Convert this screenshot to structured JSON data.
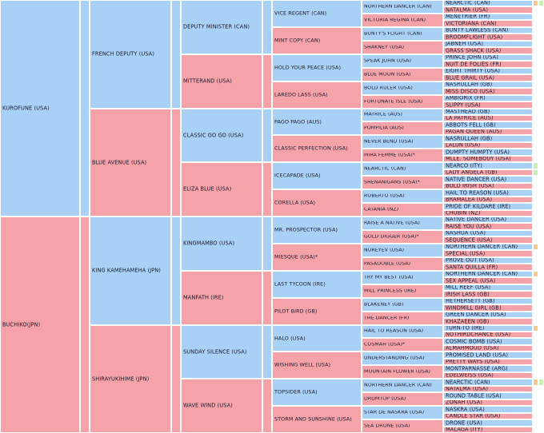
{
  "pedigree": {
    "g1": [
      "KUROFUNE (USA)",
      "BUCHIKO(JPN)"
    ],
    "g2": [
      "FRENCH DEPUTY (USA)",
      "BLUE AVENUE (USA)",
      "KING KAMEHAMEHA (JPN)",
      "SHIRAYUKIHIME (JPN)"
    ],
    "g3": [
      "DEPUTY MINISTER (CAN)",
      "MITTERAND (USA)",
      "CLASSIC GO GO (USA)",
      "ELIZA BLUE (USA)",
      "KINGMAMBO (USA)",
      "MANFATH (IRE)",
      "SUNDAY SILENCE (USA)",
      "WAVE WIND (USA)"
    ],
    "g4": [
      "VICE REGENT (CAN)",
      "MINT COPY (CAN)",
      "HOLD YOUR PEACE (USA)",
      "LAREDO LASS (USA)",
      "PAGO PAGO (AUS)",
      "CLASSIC PERFECTION (USA)",
      "ICECAPADE (USA)",
      "CORELLA (USA)",
      "MR. PROSPECTOR (USA)",
      "MIESQUE (USA)*",
      "LAST TYCOON (IRE)",
      "PILOT BIRD (GB)",
      "HALO (USA)",
      "WISHING WELL (USA)",
      "TOPSIDER (USA)",
      "STORM AND SUNSHINE (USA)"
    ],
    "g5": [
      "NORTHERN DANCER (CAN)",
      "VICTORIA REGINA (CAN)",
      "BUNTY'S FLIGHT (CAN)",
      "SHAKNEY (USA)",
      "SPEAK JOHN (USA)",
      "BLUE MOON (USA)",
      "BOLD RULER (USA)",
      "FORTUNATE ISLE (USA)",
      "MATRICE (AUS)",
      "POMPILIA (AUS)",
      "NEVER BEND (USA)",
      "MIRA FEMME (USA)*",
      "NEARCTIC (CAN)",
      "SHENANIGANS (USA)*",
      "ROBERTO (USA)",
      "CATANIA (NZ)",
      "RAISE A NATIVE (USA)",
      "GOLD DIGGER (USA)*",
      "NUREYEV (USA)",
      "PASADOBLE (USA)",
      "TRY MY BEST (USA)",
      "MILL PRINCESS (IRE)",
      "BLAKENEY (GB)",
      "THE DANCER (FR)",
      "HAIL TO REASON (USA)",
      "COSMAH (USA)*",
      "UNDERSTANDING (USA)",
      "MOUNTAIN FLOWER (USA)",
      "NORTHERN DANCER (CAN)",
      "DRUMTOP (USA)",
      "STAR DE NASKRA (USA)",
      "SEA DRONE (USA)"
    ],
    "g6": [
      "NEARCTIC (CAN)",
      "NATALMA (USA)",
      "MENETRIER (FR)",
      "VICTORIANA (CAN)",
      "BUNTY LAWLESS (CAN)",
      "BROOMFLIGHT (USA)",
      "JABNEH (USA)",
      "GRASS SHACK (USA)",
      "PRINCE JOHN (USA)",
      "NUIT DE FOLIES (FR)",
      "EIGHT THIRTY (USA)",
      "BLUE GRAIL (USA)",
      "NASRULLAH (GB)",
      "MISS DISCO (USA)",
      "AMBIORIX (FR)",
      "SLIPPY (USA)",
      "MASTHEAD (GB)",
      "LA PATRICE (AUS)",
      "ABBOTS FELL (GB)",
      "PAGAN QUEEN (AUS)",
      "NASRULLAH (GB)",
      "LALUN (USA)",
      "DUMPTY HUMPTY (USA)",
      "MLLE. SOMEBODY (USA)",
      "NEARCO (ITY)",
      "LADY ANGELA (GB)",
      "NATIVE DANCER (USA)",
      "BOLD IRISH (USA)",
      "HAIL TO REASON (USA)",
      "BRAMALEA (USA)",
      "PRIDE OF KILDARE (IRE)",
      "CHUBIN (NZ)",
      "NATIVE DANCER (USA)",
      "RAISE YOU (USA)",
      "NASHUA (USA)",
      "SEQUENCE (USA)",
      "NORTHERN DANCER (CAN)",
      "SPECIAL (USA)",
      "PROVE OUT (USA)",
      "SANTA QUILLA (FR)",
      "NORTHERN DANCER (CAN)",
      "SEX APPEAL (USA)",
      "MILL REEF (USA)",
      "IRISH LASS (GB)",
      "HETHERSETT (GB)",
      "WINDMILL GIRL (GB)",
      "GREEN DANCER (USA)",
      "KHAZAEEN (GB)",
      "TURN-TO (IRE)",
      "NOTHIRDCHANCE (USA)",
      "COSMIC BOMB (USA)",
      "ALMAHMOUD (USA)",
      "PROMISED LAND (USA)",
      "PRETTY WAYS (USA)",
      "MONTPARNASSE (ARG)",
      "EDELWEISS (USA)",
      "NEARCTIC (CAN)",
      "NATALMA (USA)",
      "ROUND TABLE (USA)",
      "ZONAH (USA)",
      "NASKRA (USA)",
      "CANDLE STAR (USA)",
      "DRONE (USA)",
      "MALAGA (ITY)"
    ]
  },
  "colors": {
    "male": "#a9d0f5",
    "female": "#f5a3a8",
    "background": "#202040",
    "marker_orange": "#f7c98a",
    "marker_green": "#c8f0b0"
  },
  "inbreeding_markers": [
    {
      "row": 0,
      "color": "marker_orange"
    },
    {
      "row": 0,
      "col2": "marker_green"
    },
    {
      "row": 24,
      "color": "marker_green"
    },
    {
      "row": 25,
      "color": "marker_green"
    },
    {
      "row": 36,
      "color": "marker_orange"
    },
    {
      "row": 40,
      "color": "marker_orange"
    },
    {
      "row": 48,
      "color": "marker_orange"
    },
    {
      "row": 56,
      "color": "marker_orange"
    },
    {
      "row": 56,
      "col2": "marker_green"
    }
  ]
}
